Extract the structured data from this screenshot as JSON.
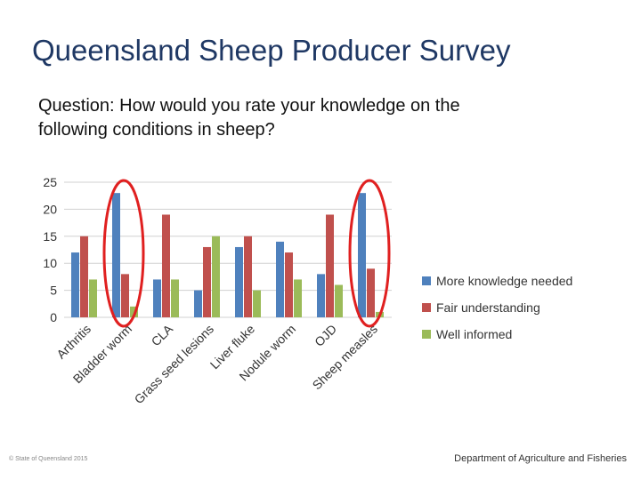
{
  "slide": {
    "title": "Queensland Sheep Producer Survey",
    "question_line1": "Question:  How would you rate your knowledge on the",
    "question_line2": "following conditions in sheep?",
    "footer_left": "© State of Queensland 2015",
    "footer_right": "Department of Agriculture and Fisheries"
  },
  "chart_data": {
    "type": "bar",
    "categories": [
      "Arthritis",
      "Bladder worm",
      "CLA",
      "Grass seed lesions",
      "Liver fluke",
      "Nodule worm",
      "OJD",
      "Sheep measles"
    ],
    "series": [
      {
        "name": "More knowledge needed",
        "color": "#4f81bd",
        "values": [
          12,
          23,
          7,
          5,
          13,
          14,
          8,
          23
        ]
      },
      {
        "name": "Fair understanding",
        "color": "#c0504d",
        "values": [
          15,
          8,
          19,
          13,
          15,
          12,
          19,
          9
        ]
      },
      {
        "name": "Well informed",
        "color": "#9bbb59",
        "values": [
          7,
          2,
          7,
          15,
          5,
          7,
          6,
          1
        ]
      }
    ],
    "yticks": [
      0,
      5,
      10,
      15,
      20,
      25
    ],
    "ylim": [
      0,
      25
    ],
    "grid": true,
    "legend": "right",
    "highlighted_categories": [
      "Bladder worm",
      "Sheep measles"
    ],
    "highlight_color": "#e02020"
  }
}
